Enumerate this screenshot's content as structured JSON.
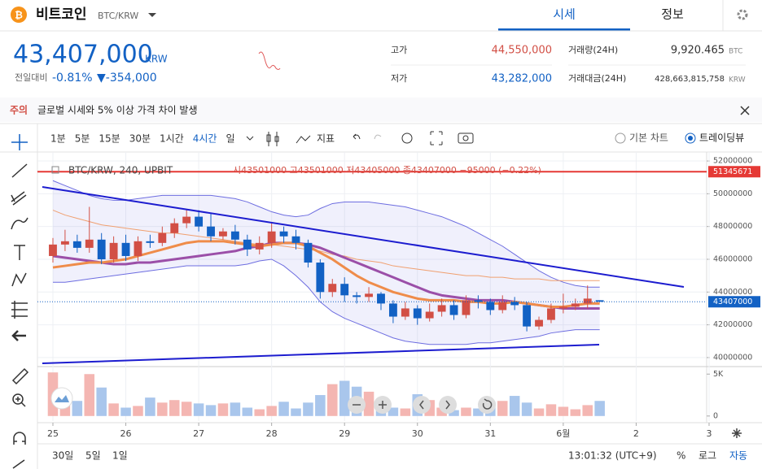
{
  "header": {
    "coin": "비트코인",
    "pair": "BTC/KRW",
    "tabs": [
      "시세",
      "정보"
    ]
  },
  "price": {
    "current": "43,407,000",
    "unit": "KRW",
    "change_label": "전일대비",
    "change_rate": "-0.81%",
    "change": "▼-354,000"
  },
  "stats": {
    "high_label": "고가",
    "high": "44,550,000",
    "low_label": "저가",
    "low": "43,282,000",
    "volume_label": "거래량(24H)",
    "volume": "9,920.465",
    "volume_unit": "BTC",
    "value_label": "거래대금(24H)",
    "value": "428,663,815,758",
    "value_unit": "KRW"
  },
  "notice": {
    "tag": "주의",
    "text": "글로벌 시세와 5% 이상 가격 차이 발생"
  },
  "toolbar": {
    "intervals": [
      "1분",
      "5분",
      "15분",
      "30분",
      "1시간",
      "4시간",
      "일"
    ],
    "indicator": "지표",
    "modes": [
      "기본 차트",
      "트레이딩뷰"
    ]
  },
  "bottom": {
    "ranges": [
      "30일",
      "5일",
      "1일"
    ],
    "time": "13:01:32 (UTC+9)",
    "options": [
      "%",
      "로그",
      "자동"
    ]
  },
  "chart_data": {
    "type": "candlestick",
    "legend": {
      "symbol": "BTC/KRW, 240, UPBIT",
      "ohlc": "시43501000 고43501000 저43405000 종43407000 −95000 (−0.22%)"
    },
    "x": [
      0,
      1,
      2,
      3,
      4,
      5,
      6,
      7,
      8,
      9,
      10,
      11,
      12,
      13,
      14,
      15,
      16,
      17,
      18,
      19,
      20,
      21,
      22,
      23,
      24,
      25,
      26,
      27,
      28,
      29,
      30,
      31,
      32,
      33,
      34,
      35,
      36,
      37,
      38,
      39,
      40,
      41,
      42,
      43,
      44,
      45
    ],
    "xlim": [
      -0.87,
      53.8
    ],
    "xticks": [
      {
        "value": 0,
        "label": "25"
      },
      {
        "value": 6,
        "label": "26"
      },
      {
        "value": 12,
        "label": "27"
      },
      {
        "value": 18,
        "label": "28"
      },
      {
        "value": 24,
        "label": "29"
      },
      {
        "value": 30,
        "label": "30"
      },
      {
        "value": 36,
        "label": "31"
      },
      {
        "value": 42,
        "label": "6월"
      },
      {
        "value": 48,
        "label": "2"
      },
      {
        "value": 54,
        "label": "3"
      }
    ],
    "open": [
      46200000,
      46900000,
      47100000,
      46700000,
      47200000,
      46000000,
      47000000,
      46200000,
      47100000,
      47000000,
      47600000,
      48200000,
      48600000,
      48000000,
      47400000,
      47700000,
      47200000,
      46600000,
      47000000,
      47700000,
      47400000,
      47000000,
      45800000,
      44000000,
      44500000,
      43800000,
      43700000,
      43900000,
      43300000,
      42500000,
      43000000,
      42400000,
      42800000,
      43200000,
      42600000,
      43500000,
      43400000,
      42900000,
      43400000,
      43200000,
      41900000,
      42300000,
      43000000,
      43100000,
      43300000,
      43501000
    ],
    "high": [
      47300000,
      47800000,
      47500000,
      49200000,
      47600000,
      47400000,
      47500000,
      47400000,
      47500000,
      48000000,
      48500000,
      49000000,
      49000000,
      48800000,
      47900000,
      48100000,
      47500000,
      47400000,
      48200000,
      48000000,
      47800000,
      47200000,
      46000000,
      44800000,
      44900000,
      44000000,
      44300000,
      44000000,
      43500000,
      43400000,
      43200000,
      43300000,
      43600000,
      43500000,
      43800000,
      43800000,
      43600000,
      43800000,
      43700000,
      43400000,
      42500000,
      43300000,
      43900000,
      43600000,
      44400000,
      43501000
    ],
    "low": [
      45800000,
      46500000,
      46400000,
      46400000,
      45700000,
      45800000,
      45900000,
      45900000,
      46700000,
      46800000,
      47300000,
      47900000,
      47700000,
      47100000,
      47200000,
      46900000,
      46200000,
      46300000,
      46700000,
      47000000,
      46600000,
      45500000,
      43600000,
      43700000,
      43400000,
      43300000,
      43400000,
      42900000,
      42100000,
      42300000,
      42000000,
      42200000,
      42500000,
      42300000,
      42400000,
      43000000,
      42600000,
      42700000,
      42900000,
      41600000,
      41700000,
      42100000,
      42700000,
      42900000,
      43000000,
      43405000
    ],
    "close": [
      46900000,
      47100000,
      46700000,
      47200000,
      46000000,
      47000000,
      46200000,
      47100000,
      47000000,
      47600000,
      48200000,
      48600000,
      48000000,
      47400000,
      47700000,
      47200000,
      46600000,
      47000000,
      47700000,
      47400000,
      47000000,
      45800000,
      44000000,
      44500000,
      43800000,
      43700000,
      43900000,
      43300000,
      42500000,
      43000000,
      42400000,
      42800000,
      43200000,
      42600000,
      43500000,
      43400000,
      42900000,
      43400000,
      43200000,
      41900000,
      42300000,
      43000000,
      43100000,
      43300000,
      43600000,
      43407000
    ],
    "up_color": "#d24f45",
    "down_color": "#1261c4",
    "ylim": [
      39500000,
      52400000
    ],
    "yticks": [
      40000000,
      42000000,
      44000000,
      46000000,
      48000000,
      50000000,
      52000000
    ],
    "grid": true,
    "band": {
      "color": "#6d6de0",
      "upper": [
        50800000,
        50500000,
        50200000,
        49900000,
        49700000,
        49600000,
        49600000,
        49700000,
        49800000,
        49900000,
        49900000,
        49900000,
        49900000,
        49900000,
        49800000,
        49700000,
        49500000,
        49200000,
        48900000,
        48700000,
        48600000,
        48700000,
        49100000,
        49400000,
        49500000,
        49500000,
        49500000,
        49400000,
        49300000,
        49200000,
        49000000,
        48800000,
        48600000,
        48300000,
        48000000,
        47600000,
        47200000,
        46800000,
        46300000,
        45800000,
        45300000,
        44900000,
        44600000,
        44400000,
        44300000,
        44300000
      ],
      "lower": [
        44600000,
        44600000,
        44700000,
        44800000,
        44900000,
        45000000,
        45100000,
        45200000,
        45300000,
        45400000,
        45500000,
        45600000,
        45600000,
        45600000,
        45600000,
        45600000,
        45700000,
        45900000,
        46000000,
        45600000,
        45000000,
        44300000,
        43400000,
        42800000,
        42400000,
        42100000,
        41800000,
        41500000,
        41200000,
        41000000,
        40900000,
        40800000,
        40800000,
        40800000,
        40800000,
        40900000,
        40900000,
        41000000,
        41100000,
        41200000,
        41300000,
        41500000,
        41600000,
        41700000,
        41700000,
        41700000
      ]
    },
    "lines": [
      {
        "color": "#f0a070",
        "width": 1,
        "values": [
          49000000,
          48700000,
          48500000,
          48300000,
          48100000,
          48000000,
          47900000,
          47800000,
          47700000,
          47600000,
          47600000,
          47500000,
          47400000,
          47300000,
          47200000,
          47100000,
          47000000,
          46900000,
          46900000,
          46800000,
          46700000,
          46600000,
          46500000,
          46300000,
          46200000,
          46000000,
          45900000,
          45800000,
          45600000,
          45500000,
          45400000,
          45300000,
          45200000,
          45100000,
          45000000,
          45000000,
          44900000,
          44900000,
          44800000,
          44800000,
          44800000,
          44700000,
          44700000,
          44700000,
          44700000,
          44700000
        ]
      },
      {
        "color": "#9b4fa8",
        "width": 3,
        "values": [
          46200000,
          46100000,
          46000000,
          45900000,
          45800000,
          45700000,
          45700000,
          45800000,
          45800000,
          45900000,
          46000000,
          46100000,
          46200000,
          46300000,
          46400000,
          46500000,
          46700000,
          46800000,
          47000000,
          47000000,
          47000000,
          46900000,
          46700000,
          46400000,
          46100000,
          45800000,
          45500000,
          45200000,
          44900000,
          44600000,
          44300000,
          44000000,
          43800000,
          43700000,
          43600000,
          43500000,
          43500000,
          43500000,
          43400000,
          43300000,
          43200000,
          43100000,
          43000000,
          43000000,
          43000000,
          43000000
        ]
      },
      {
        "color": "#ef8c4a",
        "width": 3,
        "values": [
          45500000,
          45600000,
          45700000,
          45800000,
          45800000,
          45900000,
          46000000,
          46200000,
          46400000,
          46600000,
          46800000,
          47000000,
          47100000,
          47100000,
          47100000,
          47000000,
          46900000,
          46800000,
          46900000,
          47000000,
          47000000,
          46800000,
          46400000,
          46000000,
          45500000,
          45000000,
          44600000,
          44300000,
          44000000,
          43800000,
          43600000,
          43500000,
          43500000,
          43500000,
          43400000,
          43400000,
          43300000,
          43300000,
          43400000,
          43300000,
          43200000,
          43100000,
          43100000,
          43200000,
          43300000,
          43300000
        ]
      }
    ],
    "hline": {
      "value": 51345671,
      "color": "#e53935"
    },
    "last": {
      "value": 43407000,
      "color": "#1261c4"
    },
    "volume": {
      "values": [
        5200,
        2000,
        1800,
        5000,
        3400,
        1500,
        1000,
        1200,
        2200,
        1600,
        1900,
        1700,
        1500,
        1300,
        1500,
        1600,
        1000,
        800,
        1200,
        1700,
        900,
        1600,
        2500,
        3800,
        4200,
        3500,
        2900,
        1200,
        1000,
        900,
        2600,
        1900,
        1000,
        700,
        1000,
        900,
        1700,
        1800,
        2400,
        1600,
        900,
        1400,
        1100,
        800,
        1300,
        1800
      ],
      "up_color": "#f4b6b2",
      "down_color": "#a9c6ec",
      "y2lim": [
        -600,
        5800
      ],
      "y2ticks": [
        {
          "value": 5000,
          "label": "5K"
        },
        0
      ]
    }
  }
}
